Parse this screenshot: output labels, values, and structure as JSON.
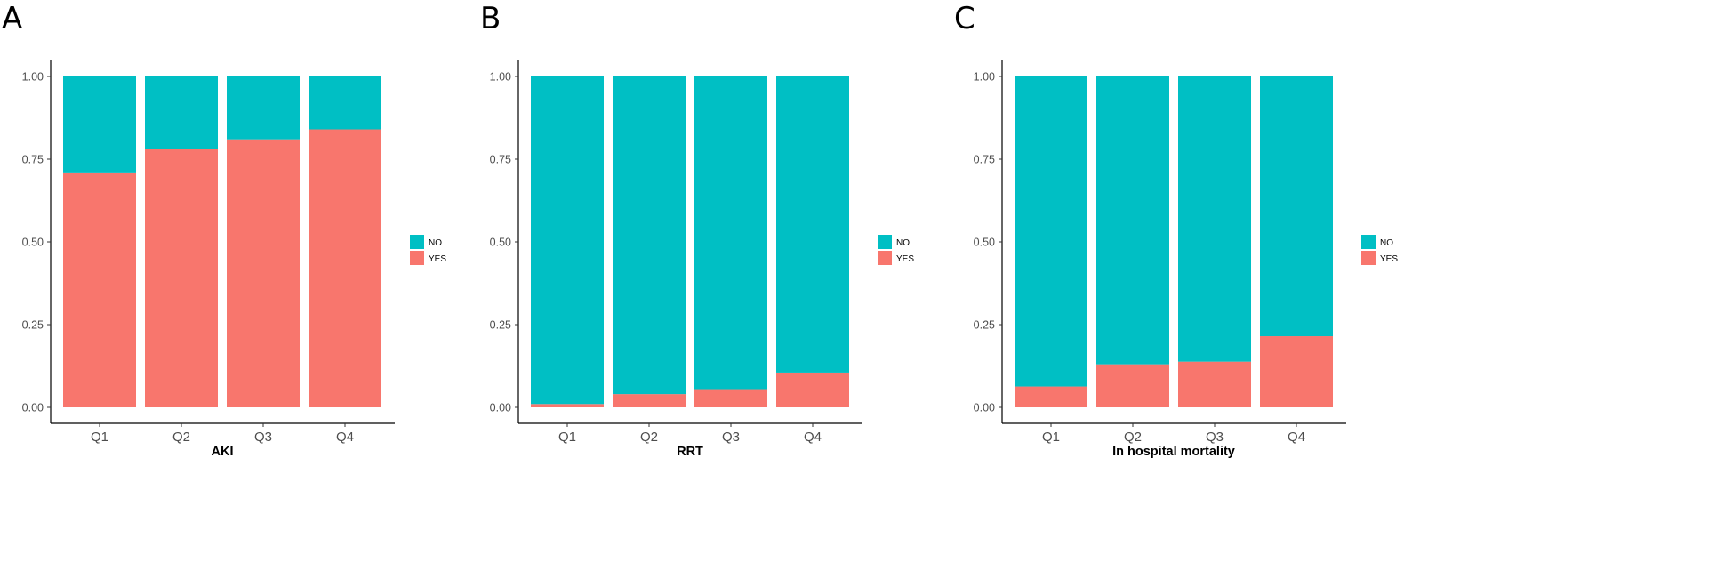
{
  "colors": {
    "NO": "#00BFC4",
    "YES": "#F8766D"
  },
  "chart_data": [
    {
      "type": "bar",
      "stacked": true,
      "panel_label": "A",
      "title": "",
      "xlabel": "AKI",
      "ylabel": "",
      "ylim": [
        0,
        1
      ],
      "yticks": [
        "0.00",
        "0.25",
        "0.50",
        "0.75",
        "1.00"
      ],
      "categories": [
        "Q1",
        "Q2",
        "Q3",
        "Q4"
      ],
      "series": [
        {
          "name": "YES",
          "values": [
            0.71,
            0.78,
            0.81,
            0.84
          ]
        },
        {
          "name": "NO",
          "values": [
            0.29,
            0.22,
            0.19,
            0.16
          ]
        }
      ],
      "legend": [
        "NO",
        "YES"
      ],
      "legend_position": "right",
      "grid": false
    },
    {
      "type": "bar",
      "stacked": true,
      "panel_label": "B",
      "title": "",
      "xlabel": "RRT",
      "ylabel": "",
      "ylim": [
        0,
        1
      ],
      "yticks": [
        "0.00",
        "0.25",
        "0.50",
        "0.75",
        "1.00"
      ],
      "categories": [
        "Q1",
        "Q2",
        "Q3",
        "Q4"
      ],
      "series": [
        {
          "name": "YES",
          "values": [
            0.01,
            0.04,
            0.055,
            0.105
          ]
        },
        {
          "name": "NO",
          "values": [
            0.99,
            0.96,
            0.945,
            0.895
          ]
        }
      ],
      "legend": [
        "NO",
        "YES"
      ],
      "legend_position": "right",
      "grid": false
    },
    {
      "type": "bar",
      "stacked": true,
      "panel_label": "C",
      "title": "",
      "xlabel": "In hospital mortality",
      "ylabel": "",
      "ylim": [
        0,
        1
      ],
      "yticks": [
        "0.00",
        "0.25",
        "0.50",
        "0.75",
        "1.00"
      ],
      "categories": [
        "Q1",
        "Q2",
        "Q3",
        "Q4"
      ],
      "series": [
        {
          "name": "YES",
          "values": [
            0.063,
            0.13,
            0.138,
            0.215
          ]
        },
        {
          "name": "NO",
          "values": [
            0.937,
            0.87,
            0.862,
            0.785
          ]
        }
      ],
      "legend": [
        "NO",
        "YES"
      ],
      "legend_position": "right",
      "grid": false
    }
  ]
}
